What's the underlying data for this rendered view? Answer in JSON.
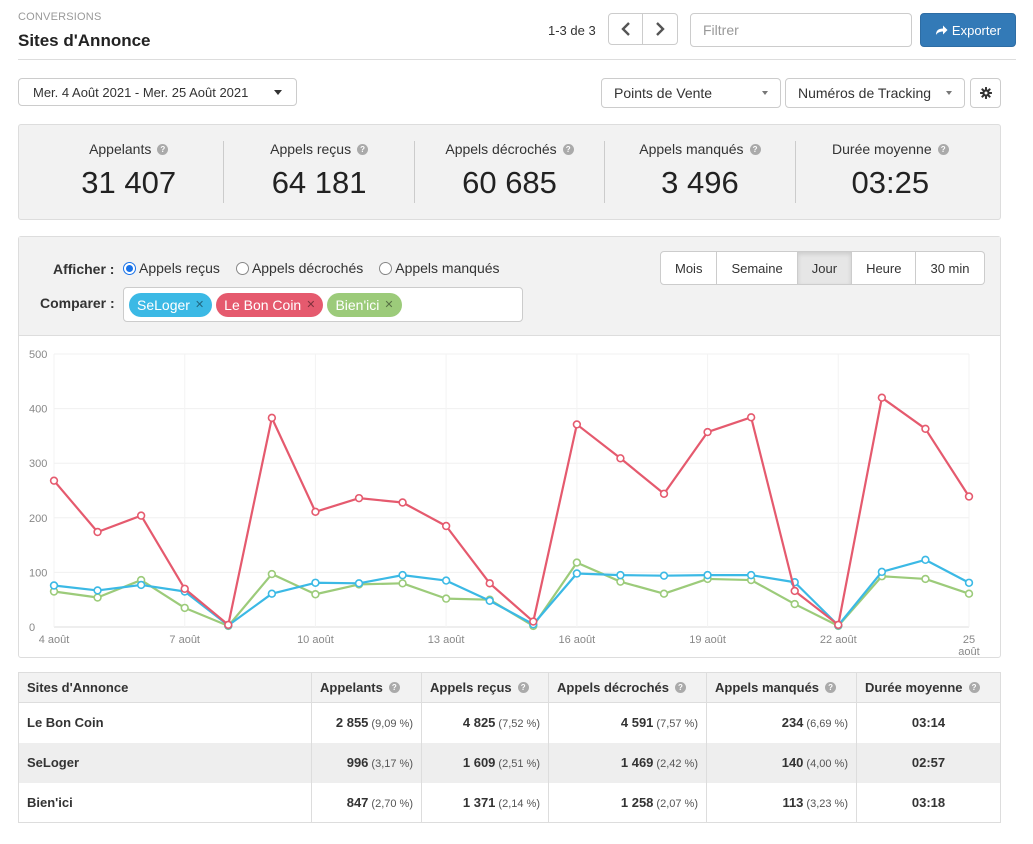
{
  "header": {
    "breadcrumb": "CONVERSIONS",
    "title": "Sites d'Annonce",
    "pager_text": "1-3 de 3",
    "filter_placeholder": "Filtrer",
    "export_label": "Exporter"
  },
  "toolbar": {
    "date_range": "Mer. 4 Août 2021 - Mer. 25 Août 2021",
    "points_de_vente": "Points de Vente",
    "numeros_tracking": "Numéros de Tracking"
  },
  "stats": [
    {
      "label": "Appelants",
      "value": "31 407"
    },
    {
      "label": "Appels reçus",
      "value": "64 181"
    },
    {
      "label": "Appels décrochés",
      "value": "60 685"
    },
    {
      "label": "Appels manqués",
      "value": "3 496"
    },
    {
      "label": "Durée moyenne",
      "value": "03:25"
    }
  ],
  "controls": {
    "afficher_label": "Afficher :",
    "comparer_label": "Comparer :",
    "radios": [
      {
        "label": "Appels reçus",
        "checked": true
      },
      {
        "label": "Appels décrochés",
        "checked": false
      },
      {
        "label": "Appels manqués",
        "checked": false
      }
    ],
    "tags": [
      {
        "label": "SeLoger",
        "color": "#3bb9e5"
      },
      {
        "label": "Le Bon Coin",
        "color": "#e55a6e"
      },
      {
        "label": "Bien'ici",
        "color": "#9ccb7a"
      }
    ],
    "periods": [
      {
        "label": "Mois",
        "active": false
      },
      {
        "label": "Semaine",
        "active": false
      },
      {
        "label": "Jour",
        "active": true
      },
      {
        "label": "Heure",
        "active": false
      },
      {
        "label": "30 min",
        "active": false
      }
    ]
  },
  "chart_data": {
    "type": "line",
    "x": [
      4,
      5,
      6,
      7,
      8,
      9,
      10,
      11,
      12,
      13,
      14,
      15,
      16,
      17,
      18,
      19,
      20,
      21,
      22,
      23,
      24,
      25
    ],
    "x_tick_labels": [
      {
        "x": 4,
        "label": "4 août"
      },
      {
        "x": 7,
        "label": "7 août"
      },
      {
        "x": 10,
        "label": "10 août"
      },
      {
        "x": 13,
        "label": "13 août"
      },
      {
        "x": 16,
        "label": "16 août"
      },
      {
        "x": 19,
        "label": "19 août"
      },
      {
        "x": 22,
        "label": "22 août"
      },
      {
        "x": 25,
        "label": "25 août"
      }
    ],
    "yticks": [
      "0",
      "100",
      "200",
      "300",
      "400",
      "500"
    ],
    "ylim": [
      0,
      500
    ],
    "grid": true,
    "series": [
      {
        "name": "Le Bon Coin",
        "color": "#e55a6e",
        "values": [
          268,
          174,
          204,
          70,
          4,
          383,
          211,
          236,
          228,
          185,
          80,
          10,
          371,
          309,
          244,
          357,
          384,
          66,
          4,
          420,
          363,
          239
        ]
      },
      {
        "name": "SeLoger",
        "color": "#3bb9e5",
        "values": [
          76,
          67,
          77,
          65,
          3,
          61,
          81,
          80,
          95,
          85,
          48,
          5,
          98,
          95,
          94,
          95,
          95,
          82,
          3,
          101,
          123,
          81
        ]
      },
      {
        "name": "Bien'ici",
        "color": "#9ccb7a",
        "values": [
          65,
          54,
          86,
          35,
          2,
          97,
          60,
          78,
          80,
          52,
          50,
          2,
          118,
          83,
          61,
          88,
          86,
          42,
          2,
          93,
          88,
          61
        ]
      }
    ]
  },
  "table": {
    "headers": [
      "Sites d'Annonce",
      "Appelants",
      "Appels reçus",
      "Appels décrochés",
      "Appels manqués",
      "Durée moyenne"
    ],
    "rows": [
      {
        "name": "Le Bon Coin",
        "appelants": "2 855",
        "appelants_pct": "(9,09 %)",
        "recus": "4 825",
        "recus_pct": "(7,52 %)",
        "decroches": "4 591",
        "decroches_pct": "(7,57 %)",
        "manques": "234",
        "manques_pct": "(6,69 %)",
        "duree": "03:14"
      },
      {
        "name": "SeLoger",
        "appelants": "996",
        "appelants_pct": "(3,17 %)",
        "recus": "1 609",
        "recus_pct": "(2,51 %)",
        "decroches": "1 469",
        "decroches_pct": "(2,42 %)",
        "manques": "140",
        "manques_pct": "(4,00 %)",
        "duree": "02:57"
      },
      {
        "name": "Bien'ici",
        "appelants": "847",
        "appelants_pct": "(2,70 %)",
        "recus": "1 371",
        "recus_pct": "(2,14 %)",
        "decroches": "1 258",
        "decroches_pct": "(2,07 %)",
        "manques": "113",
        "manques_pct": "(3,23 %)",
        "duree": "03:18"
      }
    ]
  }
}
